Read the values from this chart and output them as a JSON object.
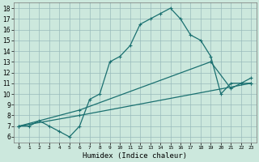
{
  "title": "",
  "xlabel": "Humidex (Indice chaleur)",
  "background_color": "#cce8dd",
  "grid_color": "#99bbbb",
  "line_color": "#1a7070",
  "xlim": [
    -0.5,
    23.5
  ],
  "ylim": [
    5.5,
    18.5
  ],
  "xticks": [
    0,
    1,
    2,
    3,
    4,
    5,
    6,
    7,
    8,
    9,
    10,
    11,
    12,
    13,
    14,
    15,
    16,
    17,
    18,
    19,
    20,
    21,
    22,
    23
  ],
  "yticks": [
    6,
    7,
    8,
    9,
    10,
    11,
    12,
    13,
    14,
    15,
    16,
    17,
    18
  ],
  "line1_x": [
    0,
    1,
    2,
    3,
    4,
    5,
    6,
    7,
    8,
    9,
    10,
    11,
    12,
    13,
    14,
    15,
    16,
    17,
    18,
    19,
    20,
    21,
    22,
    23
  ],
  "line1_y": [
    7.0,
    7.0,
    7.5,
    7.0,
    6.5,
    6.0,
    7.0,
    9.5,
    10.0,
    13.0,
    13.5,
    14.5,
    16.5,
    17.0,
    17.5,
    18.0,
    17.0,
    15.5,
    15.0,
    13.5,
    10.0,
    11.0,
    11.0,
    11.0
  ],
  "line2_x": [
    0,
    6,
    23
  ],
  "line2_y": [
    7.0,
    8.0,
    11.0
  ],
  "line3_x": [
    0,
    6,
    19,
    21,
    23
  ],
  "line3_y": [
    7.0,
    8.5,
    13.0,
    10.5,
    11.5
  ]
}
